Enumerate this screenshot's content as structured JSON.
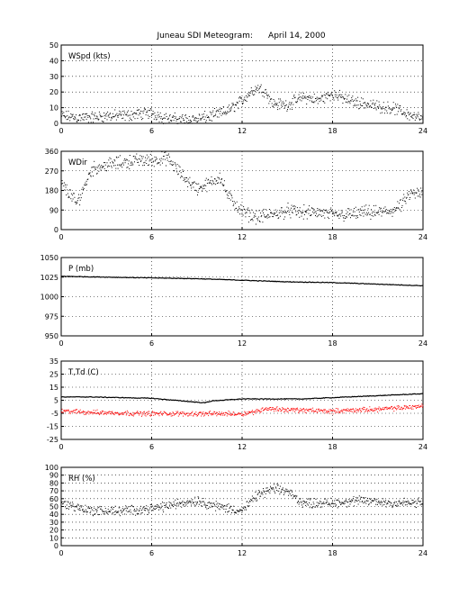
{
  "title": "Juneau SDI Meteogram:      April 14, 2000",
  "chart_data": [
    {
      "type": "scatter",
      "ylabel": "WSpd (kts)",
      "x_ticks": [
        0,
        6,
        12,
        18,
        24
      ],
      "y_ticks": [
        0,
        10,
        20,
        30,
        40,
        50
      ],
      "xlim": [
        0,
        24
      ],
      "ylim": [
        0,
        50
      ],
      "grid": true,
      "series": [
        {
          "color": "#000000",
          "style": "dots",
          "x": [
            0,
            1,
            2,
            3,
            4,
            5,
            6,
            7,
            8,
            9,
            10,
            11,
            12,
            12.5,
            13,
            13.5,
            14,
            15,
            16,
            17,
            18,
            19,
            20,
            21,
            22,
            23,
            24
          ],
          "y": [
            5,
            4,
            4,
            5,
            5,
            6,
            7,
            3,
            3,
            3,
            5,
            8,
            15,
            20,
            23,
            21,
            13,
            12,
            17,
            15,
            19,
            15,
            13,
            11,
            10,
            6,
            3
          ],
          "spread": 3
        }
      ]
    },
    {
      "type": "scatter",
      "ylabel": "WDir",
      "x_ticks": [
        0,
        6,
        12,
        18,
        24
      ],
      "y_ticks": [
        0,
        90,
        180,
        270,
        360
      ],
      "xlim": [
        0,
        24
      ],
      "ylim": [
        0,
        360
      ],
      "grid": true,
      "series": [
        {
          "color": "#000000",
          "style": "dots",
          "x": [
            0,
            0.5,
            1,
            2,
            3,
            4,
            5,
            6,
            7,
            8,
            9,
            10,
            10.5,
            11,
            11.5,
            12,
            13,
            14,
            15,
            16,
            17,
            18,
            19,
            20,
            21,
            22,
            22.5,
            23,
            24
          ],
          "y": [
            210,
            170,
            120,
            280,
            300,
            310,
            320,
            320,
            330,
            250,
            190,
            220,
            250,
            160,
            120,
            80,
            60,
            70,
            90,
            80,
            80,
            70,
            70,
            80,
            80,
            90,
            110,
            160,
            170
          ],
          "spread": 25
        }
      ]
    },
    {
      "type": "line",
      "ylabel": "P (mb)",
      "x_ticks": [
        0,
        6,
        12,
        18,
        24
      ],
      "y_ticks": [
        950,
        975,
        1000,
        1025,
        1050
      ],
      "xlim": [
        0,
        24
      ],
      "ylim": [
        950,
        1050
      ],
      "grid": true,
      "series": [
        {
          "color": "#000000",
          "style": "line",
          "x": [
            0,
            3,
            6,
            9,
            12,
            15,
            18,
            21,
            24
          ],
          "y": [
            1026,
            1025,
            1024,
            1023,
            1021,
            1019,
            1018,
            1016,
            1014
          ]
        }
      ]
    },
    {
      "type": "line",
      "ylabel": "T,Td (C)",
      "x_ticks": [
        0,
        6,
        12,
        18,
        24
      ],
      "y_ticks": [
        -25,
        -15,
        -5,
        5,
        15,
        25,
        35
      ],
      "xlim": [
        0,
        24
      ],
      "ylim": [
        -25,
        35
      ],
      "grid": true,
      "series": [
        {
          "color": "#000000",
          "style": "line",
          "x": [
            0,
            2,
            4,
            6,
            8,
            9,
            9.5,
            10,
            12,
            14,
            16,
            18,
            20,
            22,
            24
          ],
          "y": [
            7.5,
            7.5,
            7,
            6.5,
            4.5,
            3.5,
            3,
            4.5,
            6,
            6,
            6,
            7,
            8,
            9,
            10
          ]
        },
        {
          "color": "#ff0000",
          "style": "dots",
          "x": [
            0,
            2,
            4,
            6,
            8,
            10,
            12,
            13,
            13.5,
            15,
            18,
            20,
            22,
            24
          ],
          "y": [
            -3,
            -4,
            -4.5,
            -5,
            -5,
            -5,
            -5,
            -3,
            -1,
            -2,
            -3,
            -2,
            -1,
            1
          ],
          "spread": 1.5
        }
      ]
    },
    {
      "type": "scatter",
      "ylabel": "RH (%)",
      "x_ticks": [
        0,
        6,
        12,
        18,
        24
      ],
      "y_ticks": [
        0,
        10,
        20,
        30,
        40,
        50,
        60,
        70,
        80,
        90,
        100
      ],
      "xlim": [
        0,
        24
      ],
      "ylim": [
        0,
        100
      ],
      "grid": true,
      "series": [
        {
          "color": "#000000",
          "style": "dots",
          "x": [
            0,
            2,
            4,
            6,
            8,
            9,
            10,
            12,
            13,
            14,
            15,
            16,
            18,
            20,
            22,
            24
          ],
          "y": [
            55,
            45,
            45,
            48,
            55,
            58,
            52,
            45,
            65,
            73,
            70,
            55,
            55,
            58,
            55,
            55
          ],
          "spread": 5
        }
      ]
    }
  ]
}
